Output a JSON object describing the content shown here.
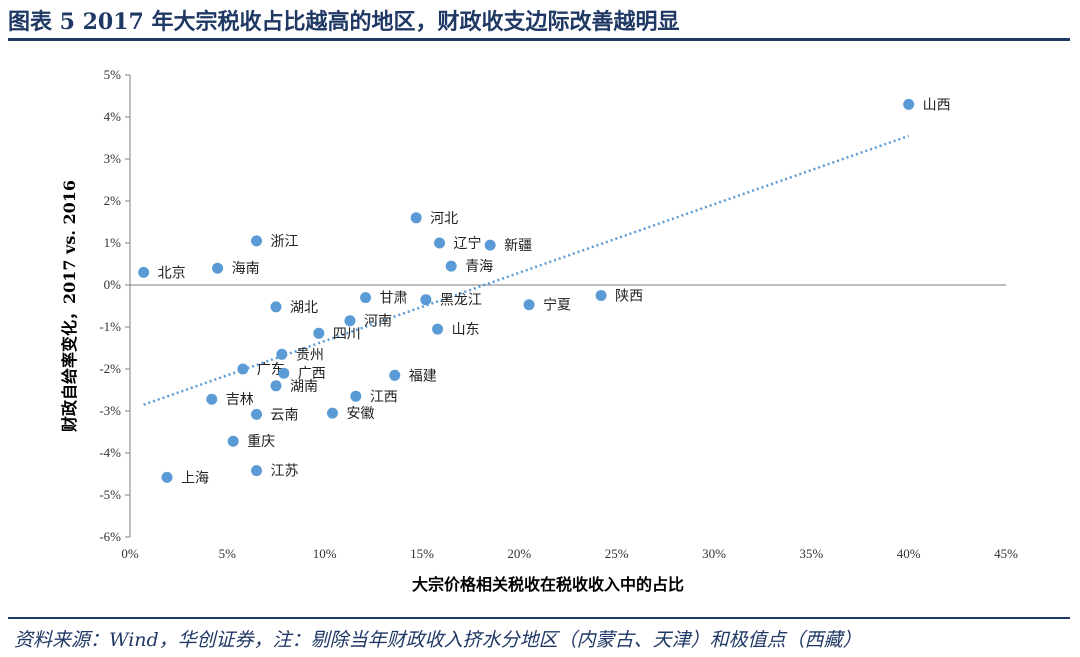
{
  "figure": {
    "title": "图表 5   2017 年大宗税收占比越高的地区，财政收支边际改善越明显",
    "source": "资料来源：Wind，华创证券，注：剔除当年财政收入挤水分地区（内蒙古、天津）和极值点（西藏）"
  },
  "colors": {
    "accent": "#1f3864",
    "point": "#5b9bd5",
    "trend": "#5b9bd5"
  },
  "chart_data": {
    "type": "scatter",
    "xlabel": "大宗价格相关税收在税收收入中的占比",
    "ylabel": "财政自给率变化，2017 vs. 2016",
    "xlim": [
      0,
      45
    ],
    "ylim": [
      -6,
      5
    ],
    "x_ticks": [
      0,
      5,
      10,
      15,
      20,
      25,
      30,
      35,
      40,
      45
    ],
    "y_ticks": [
      5,
      4,
      3,
      2,
      1,
      0,
      -1,
      -2,
      -3,
      -4,
      -5,
      -6
    ],
    "x_tick_labels": [
      "0%",
      "5%",
      "10%",
      "15%",
      "20%",
      "25%",
      "30%",
      "35%",
      "40%",
      "45%"
    ],
    "y_tick_labels": [
      "5%",
      "4%",
      "3%",
      "2%",
      "1%",
      "0%",
      "-1%",
      "-2%",
      "-3%",
      "-4%",
      "-5%",
      "-6%"
    ],
    "grid": false,
    "trendline": {
      "style": "dotted",
      "x": [
        0.7,
        40
      ],
      "y": [
        -2.85,
        3.55
      ]
    },
    "points": [
      {
        "label": "山西",
        "x": 40.0,
        "y": 4.3
      },
      {
        "label": "河北",
        "x": 14.7,
        "y": 1.6
      },
      {
        "label": "辽宁",
        "x": 15.9,
        "y": 1.0
      },
      {
        "label": "新疆",
        "x": 18.5,
        "y": 0.95
      },
      {
        "label": "浙江",
        "x": 6.5,
        "y": 1.05
      },
      {
        "label": "青海",
        "x": 16.5,
        "y": 0.45
      },
      {
        "label": "北京",
        "x": 0.7,
        "y": 0.3
      },
      {
        "label": "海南",
        "x": 4.5,
        "y": 0.4
      },
      {
        "label": "甘肃",
        "x": 12.1,
        "y": -0.3
      },
      {
        "label": "黑龙江",
        "x": 15.2,
        "y": -0.35
      },
      {
        "label": "陕西",
        "x": 24.2,
        "y": -0.25
      },
      {
        "label": "宁夏",
        "x": 20.5,
        "y": -0.47
      },
      {
        "label": "湖北",
        "x": 7.5,
        "y": -0.52
      },
      {
        "label": "河南",
        "x": 11.3,
        "y": -0.85
      },
      {
        "label": "四川",
        "x": 9.7,
        "y": -1.15
      },
      {
        "label": "山东",
        "x": 15.8,
        "y": -1.05
      },
      {
        "label": "贵州",
        "x": 7.8,
        "y": -1.65
      },
      {
        "label": "广东",
        "x": 5.8,
        "y": -2.0
      },
      {
        "label": "广西",
        "x": 7.9,
        "y": -2.1
      },
      {
        "label": "福建",
        "x": 13.6,
        "y": -2.15
      },
      {
        "label": "吉林",
        "x": 4.2,
        "y": -2.72
      },
      {
        "label": "湖南",
        "x": 7.5,
        "y": -2.4
      },
      {
        "label": "江西",
        "x": 11.6,
        "y": -2.65
      },
      {
        "label": "云南",
        "x": 6.5,
        "y": -3.08
      },
      {
        "label": "安徽",
        "x": 10.4,
        "y": -3.05
      },
      {
        "label": "重庆",
        "x": 5.3,
        "y": -3.72
      },
      {
        "label": "江苏",
        "x": 6.5,
        "y": -4.42
      },
      {
        "label": "上海",
        "x": 1.9,
        "y": -4.58
      }
    ]
  }
}
